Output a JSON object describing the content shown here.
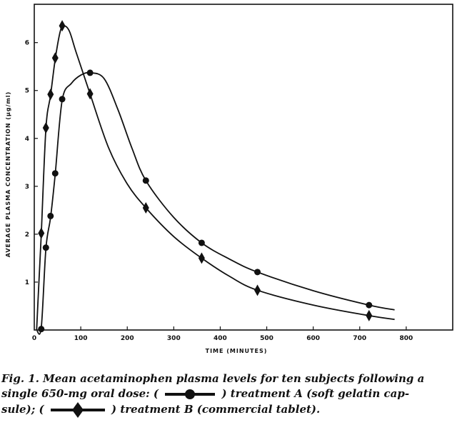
{
  "chart_data": {
    "type": "line",
    "title": "",
    "xlabel": "TIME (MINUTES)",
    "ylabel": "AVERAGE PLASMA CONCENTRATION (μg/ml)",
    "xlim": [
      0,
      900
    ],
    "ylim": [
      0,
      6.8
    ],
    "x_ticks": [
      0,
      100,
      200,
      300,
      400,
      500,
      600,
      700,
      800
    ],
    "y_ticks": [
      1,
      2,
      3,
      4,
      5,
      6
    ],
    "grid": false,
    "series": [
      {
        "name": "treatment A (soft gelatin capsule)",
        "marker": "circle",
        "points": [
          [
            15,
            0.02
          ],
          [
            25,
            1.72
          ],
          [
            35,
            2.38
          ],
          [
            45,
            3.27
          ],
          [
            60,
            4.82
          ],
          [
            120,
            5.37
          ],
          [
            240,
            3.12
          ],
          [
            360,
            1.82
          ],
          [
            480,
            1.21
          ],
          [
            720,
            0.52
          ]
        ],
        "curve": [
          [
            5,
            0
          ],
          [
            15,
            0.05
          ],
          [
            25,
            1.7
          ],
          [
            35,
            2.35
          ],
          [
            45,
            3.25
          ],
          [
            60,
            4.8
          ],
          [
            80,
            5.15
          ],
          [
            100,
            5.32
          ],
          [
            120,
            5.37
          ],
          [
            150,
            5.25
          ],
          [
            180,
            4.6
          ],
          [
            210,
            3.8
          ],
          [
            240,
            3.12
          ],
          [
            300,
            2.35
          ],
          [
            360,
            1.82
          ],
          [
            420,
            1.48
          ],
          [
            480,
            1.21
          ],
          [
            600,
            0.82
          ],
          [
            720,
            0.52
          ],
          [
            775,
            0.42
          ]
        ]
      },
      {
        "name": "treatment B (commercial tablet)",
        "marker": "diamond",
        "points": [
          [
            15,
            2.02
          ],
          [
            25,
            4.22
          ],
          [
            35,
            4.92
          ],
          [
            45,
            5.68
          ],
          [
            60,
            6.35
          ],
          [
            120,
            4.93
          ],
          [
            240,
            2.55
          ],
          [
            360,
            1.5
          ],
          [
            480,
            0.83
          ],
          [
            720,
            0.3
          ]
        ],
        "curve": [
          [
            5,
            0
          ],
          [
            10,
            1.0
          ],
          [
            15,
            2.0
          ],
          [
            25,
            4.2
          ],
          [
            35,
            4.9
          ],
          [
            45,
            5.65
          ],
          [
            55,
            6.2
          ],
          [
            62,
            6.35
          ],
          [
            75,
            6.25
          ],
          [
            90,
            5.8
          ],
          [
            120,
            4.93
          ],
          [
            160,
            3.8
          ],
          [
            200,
            3.05
          ],
          [
            240,
            2.55
          ],
          [
            300,
            1.95
          ],
          [
            360,
            1.5
          ],
          [
            420,
            1.12
          ],
          [
            480,
            0.83
          ],
          [
            600,
            0.52
          ],
          [
            720,
            0.3
          ],
          [
            775,
            0.22
          ]
        ]
      }
    ]
  },
  "caption": {
    "line1": "Fig. 1. Mean acetaminophen plasma levels for ten subjects following a",
    "line2_pre": "single 650-mg oral dose: (",
    "line2_post": ") treatment A (soft gelatin cap-",
    "line3_pre": "sule); (",
    "line3_post": ") treatment B (commercial tablet)."
  }
}
